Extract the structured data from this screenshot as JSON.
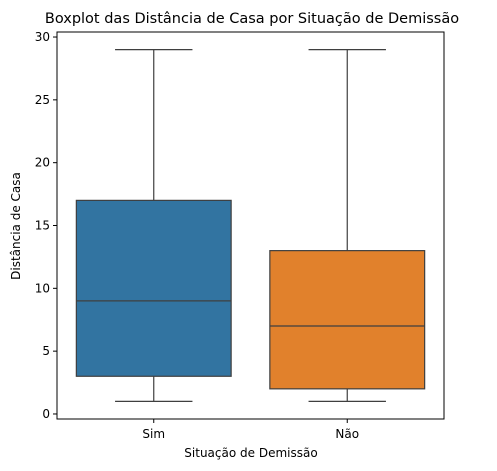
{
  "chart_data": {
    "type": "boxplot",
    "title": "Boxplot das Distância de Casa por Situação de Demissão",
    "xlabel": "Situação de Demissão",
    "ylabel": "Distância de Casa",
    "categories": [
      "Sim",
      "Não"
    ],
    "boxes": [
      {
        "category": "Sim",
        "whisker_low": 1,
        "q1": 3,
        "median": 9,
        "q3": 17,
        "whisker_high": 29,
        "color": "#3274a1"
      },
      {
        "category": "Não",
        "whisker_low": 1,
        "q1": 2,
        "median": 7,
        "q3": 13,
        "whisker_high": 29,
        "color": "#e1812c"
      }
    ],
    "yticks": [
      0,
      5,
      10,
      15,
      20,
      25,
      30
    ],
    "ylim": [
      -0.4,
      30.4
    ],
    "grid": false,
    "line_color": "#3f3f3f"
  }
}
